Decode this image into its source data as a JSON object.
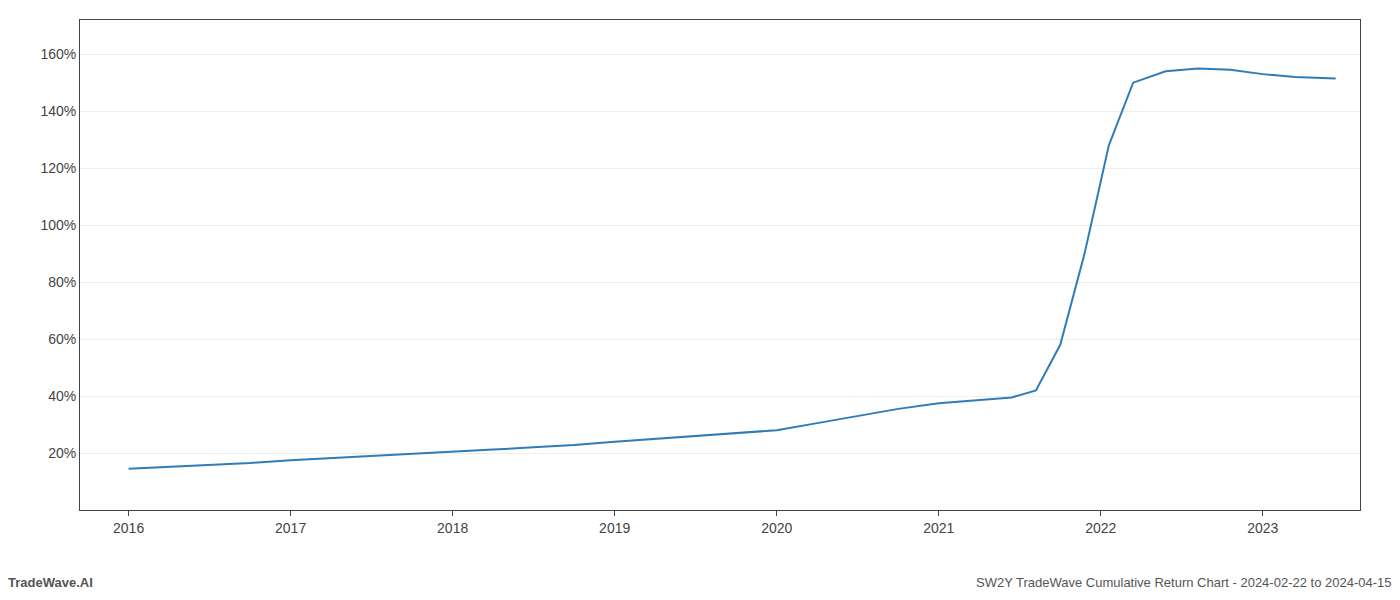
{
  "chart_data": {
    "type": "line",
    "x": [
      2016.0,
      2016.25,
      2016.5,
      2016.75,
      2017.0,
      2017.25,
      2017.5,
      2017.75,
      2018.0,
      2018.25,
      2018.5,
      2018.75,
      2019.0,
      2019.25,
      2019.5,
      2019.75,
      2020.0,
      2020.25,
      2020.5,
      2020.75,
      2021.0,
      2021.1,
      2021.2,
      2021.3,
      2021.45,
      2021.6,
      2021.75,
      2021.9,
      2022.05,
      2022.2,
      2022.4,
      2022.6,
      2022.8,
      2023.0,
      2023.2,
      2023.45
    ],
    "values": [
      14.5,
      15.2,
      15.8,
      16.5,
      17.5,
      18.2,
      19.0,
      19.8,
      20.5,
      21.2,
      22.0,
      22.8,
      24.0,
      25.0,
      26.0,
      27.0,
      28.0,
      30.5,
      33.0,
      35.5,
      37.5,
      38.0,
      38.5,
      39.0,
      39.5,
      42.0,
      58.0,
      90.0,
      128.0,
      150.0,
      154.0,
      155.0,
      154.5,
      153.0,
      152.0,
      151.5
    ],
    "color": "#2f7cb9",
    "xlim": [
      2015.7,
      2023.6
    ],
    "xticks": [
      2016,
      2017,
      2018,
      2019,
      2020,
      2021,
      2022,
      2023
    ],
    "ylim": [
      0,
      172
    ],
    "yticks": [
      {
        "value": 20,
        "label": "20%"
      },
      {
        "value": 40,
        "label": "40%"
      },
      {
        "value": 60,
        "label": "60%"
      },
      {
        "value": 80,
        "label": "80%"
      },
      {
        "value": 100,
        "label": "100%"
      },
      {
        "value": 120,
        "label": "120%"
      },
      {
        "value": 140,
        "label": "140%"
      },
      {
        "value": 160,
        "label": "160%"
      }
    ],
    "grid": "y",
    "annotations": [
      "TradeWave.AI",
      "SW2Y TradeWave Cumulative Return Chart - 2024-02-22 to 2024-04-15"
    ]
  }
}
